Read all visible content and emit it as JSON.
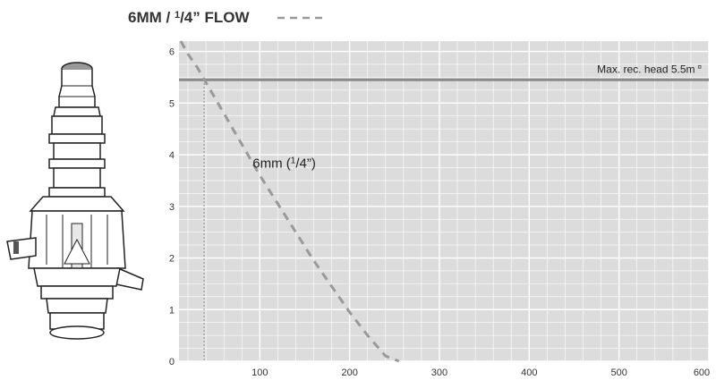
{
  "chart_data": {
    "type": "line",
    "title": {
      "main": "6MM / ",
      "frac_num": "1",
      "frac_den": "/4",
      "rest": "” FLOW"
    },
    "legend": {
      "placement": "top",
      "style": "dashed",
      "color": "#999999"
    },
    "xlim": [
      10,
      600
    ],
    "ylim": [
      0,
      6.2
    ],
    "x_ticks": [
      100,
      200,
      300,
      400,
      500,
      600
    ],
    "y_ticks": [
      0,
      1,
      2,
      3,
      4,
      5,
      6
    ],
    "x_tick_labels": [
      "100",
      "200",
      "300",
      "400",
      "500",
      "600"
    ],
    "y_tick_labels": [
      "0",
      "1",
      "2",
      "3",
      "4",
      "5",
      "6"
    ],
    "grid": true,
    "background_color": "#dcdcdc",
    "series": [
      {
        "name": "6mm (¹/₄”)",
        "label": {
          "main": "6mm (",
          "frac_num": "1",
          "frac_den": "/4",
          "rest": "”)"
        },
        "style": "dashed",
        "color": "#999999",
        "x": [
          12,
          20,
          30,
          40,
          55,
          70,
          85,
          100,
          120,
          140,
          160,
          180,
          200,
          220,
          240,
          255
        ],
        "y": [
          6.2,
          5.95,
          5.7,
          5.4,
          4.95,
          4.5,
          4.05,
          3.6,
          3.05,
          2.5,
          1.95,
          1.45,
          0.95,
          0.5,
          0.1,
          -0.2
        ]
      }
    ],
    "reference_line": {
      "y": 5.45,
      "label": "Max. rec. head 5.5m",
      "mark": "¤",
      "color": "#8a8a8a"
    },
    "vertical_marker": {
      "x": 38,
      "style": "dotted",
      "color": "#777777"
    }
  }
}
